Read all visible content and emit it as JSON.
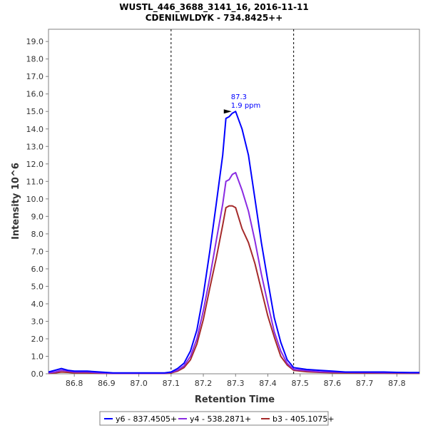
{
  "chart_data": {
    "type": "line",
    "title": "WUSTL_446_3688_3141_16, 2016-11-11",
    "subtitle": "CDENILWLDYK - 734.8425++",
    "xlabel": "Retention Time",
    "ylabel": "Intensity 10^6",
    "xlim": [
      86.72,
      87.87
    ],
    "ylim": [
      0,
      19.7
    ],
    "x_ticks": [
      "86.8",
      "86.9",
      "87.0",
      "87.1",
      "87.2",
      "87.3",
      "87.4",
      "87.5",
      "87.6",
      "87.7",
      "87.8"
    ],
    "y_ticks": [
      "0.0",
      "1.0",
      "2.0",
      "3.0",
      "4.0",
      "5.0",
      "6.0",
      "7.0",
      "8.0",
      "9.0",
      "10.0",
      "11.0",
      "12.0",
      "13.0",
      "14.0",
      "15.0",
      "16.0",
      "17.0",
      "18.0",
      "19.0"
    ],
    "boundaries": [
      87.1,
      87.48
    ],
    "grid": false,
    "legend_position": "bottom",
    "annotation": {
      "x": 87.29,
      "y": 15.0,
      "rt_label": "87.3",
      "ppm_label": "1.9 ppm"
    },
    "series": [
      {
        "name": "y6 - 837.4505+",
        "color": "#0000ff",
        "x": [
          86.72,
          86.74,
          86.76,
          86.78,
          86.8,
          86.84,
          86.88,
          86.92,
          86.96,
          87.0,
          87.04,
          87.08,
          87.1,
          87.12,
          87.14,
          87.16,
          87.18,
          87.2,
          87.22,
          87.24,
          87.26,
          87.27,
          87.28,
          87.29,
          87.3,
          87.32,
          87.34,
          87.36,
          87.38,
          87.4,
          87.42,
          87.44,
          87.46,
          87.48,
          87.52,
          87.56,
          87.6,
          87.64,
          87.68,
          87.72,
          87.76,
          87.8,
          87.84,
          87.87
        ],
        "y": [
          0.1,
          0.2,
          0.3,
          0.2,
          0.15,
          0.15,
          0.1,
          0.05,
          0.05,
          0.05,
          0.05,
          0.05,
          0.1,
          0.3,
          0.6,
          1.3,
          2.5,
          4.5,
          7.0,
          9.7,
          12.5,
          14.6,
          14.7,
          14.9,
          15.0,
          14.0,
          12.5,
          10.0,
          7.5,
          5.3,
          3.2,
          1.8,
          0.8,
          0.35,
          0.25,
          0.2,
          0.15,
          0.1,
          0.1,
          0.1,
          0.1,
          0.08,
          0.07,
          0.07
        ]
      },
      {
        "name": "y4 - 538.2871+",
        "color": "#8a2be2",
        "x": [
          86.72,
          86.74,
          86.76,
          86.78,
          86.8,
          86.84,
          86.88,
          86.92,
          86.96,
          87.0,
          87.04,
          87.08,
          87.1,
          87.12,
          87.14,
          87.16,
          87.18,
          87.2,
          87.22,
          87.24,
          87.26,
          87.27,
          87.28,
          87.29,
          87.3,
          87.32,
          87.34,
          87.36,
          87.38,
          87.4,
          87.42,
          87.44,
          87.46,
          87.48,
          87.52,
          87.56,
          87.6,
          87.64,
          87.68,
          87.72,
          87.76,
          87.8,
          87.84,
          87.87
        ],
        "y": [
          0.05,
          0.1,
          0.2,
          0.15,
          0.1,
          0.1,
          0.05,
          0.03,
          0.03,
          0.03,
          0.03,
          0.03,
          0.08,
          0.2,
          0.45,
          1.0,
          2.0,
          3.6,
          5.5,
          7.6,
          9.7,
          11.0,
          11.1,
          11.4,
          11.5,
          10.5,
          9.3,
          7.6,
          5.7,
          4.0,
          2.4,
          1.3,
          0.6,
          0.25,
          0.18,
          0.12,
          0.1,
          0.08,
          0.07,
          0.07,
          0.06,
          0.06,
          0.05,
          0.05
        ]
      },
      {
        "name": "b3 - 405.1075+",
        "color": "#a52a2a",
        "x": [
          86.72,
          86.74,
          86.76,
          86.78,
          86.8,
          86.84,
          86.88,
          86.92,
          86.96,
          87.0,
          87.04,
          87.08,
          87.1,
          87.12,
          87.14,
          87.16,
          87.18,
          87.2,
          87.22,
          87.24,
          87.26,
          87.27,
          87.28,
          87.29,
          87.3,
          87.32,
          87.34,
          87.36,
          87.38,
          87.4,
          87.42,
          87.44,
          87.46,
          87.48,
          87.52,
          87.56,
          87.6,
          87.64,
          87.68,
          87.72,
          87.76,
          87.8,
          87.84,
          87.87
        ],
        "y": [
          0.03,
          0.05,
          0.1,
          0.08,
          0.05,
          0.05,
          0.03,
          0.02,
          0.02,
          0.02,
          0.02,
          0.02,
          0.05,
          0.15,
          0.35,
          0.8,
          1.7,
          3.1,
          4.9,
          6.6,
          8.5,
          9.5,
          9.6,
          9.6,
          9.5,
          8.3,
          7.5,
          6.3,
          4.8,
          3.3,
          2.1,
          1.0,
          0.5,
          0.2,
          0.12,
          0.08,
          0.06,
          0.05,
          0.04,
          0.04,
          0.04,
          0.03,
          0.03,
          0.03
        ]
      }
    ]
  }
}
